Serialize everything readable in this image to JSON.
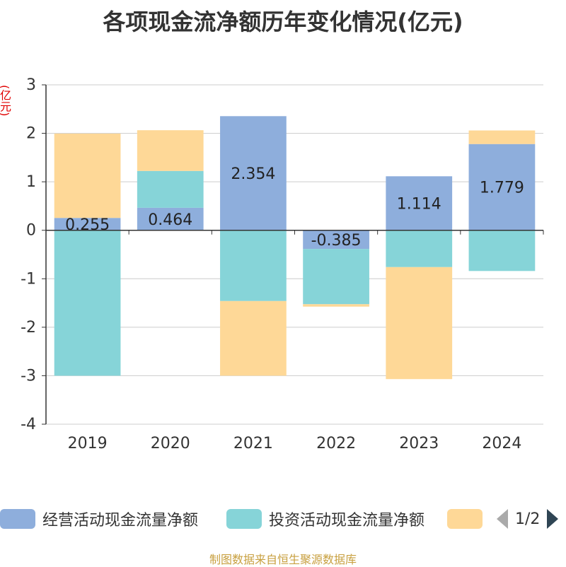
{
  "title": "各项现金流净额历年变化情况(亿元)",
  "unit": "(亿元)",
  "footer": "制图数据来自恒生聚源数据库",
  "legend": {
    "items": [
      {
        "label": "经营活动现金流量净额",
        "color": "#8eaedc"
      },
      {
        "label": "投资活动现金流量净额",
        "color": "#86d4d8"
      },
      {
        "label": "",
        "color": "#fed897"
      }
    ],
    "page": "1/2"
  },
  "chart_data": {
    "type": "bar",
    "stacked": true,
    "categories": [
      "2019",
      "2020",
      "2021",
      "2022",
      "2023",
      "2024"
    ],
    "ylim": [
      -4,
      3
    ],
    "yticks": [
      3,
      2,
      1,
      0,
      -1,
      -2,
      -3,
      -4
    ],
    "grid": true,
    "legend_position": "bottom",
    "series": [
      {
        "name": "经营活动现金流量净额",
        "color": "#8eaedc",
        "values": [
          0.255,
          0.464,
          2.354,
          -0.385,
          1.114,
          1.779
        ],
        "labels": [
          "0.255",
          "0.464",
          "2.354",
          "-0.385",
          "1.114",
          "1.779"
        ]
      },
      {
        "name": "投资活动现金流量净额",
        "color": "#86d4d8",
        "values": [
          -3.0,
          0.76,
          -1.46,
          -1.14,
          -0.76,
          -0.84
        ]
      },
      {
        "color": "#fed897",
        "values": [
          1.74,
          0.84,
          -1.54,
          -0.05,
          -2.31,
          0.28
        ]
      }
    ]
  }
}
